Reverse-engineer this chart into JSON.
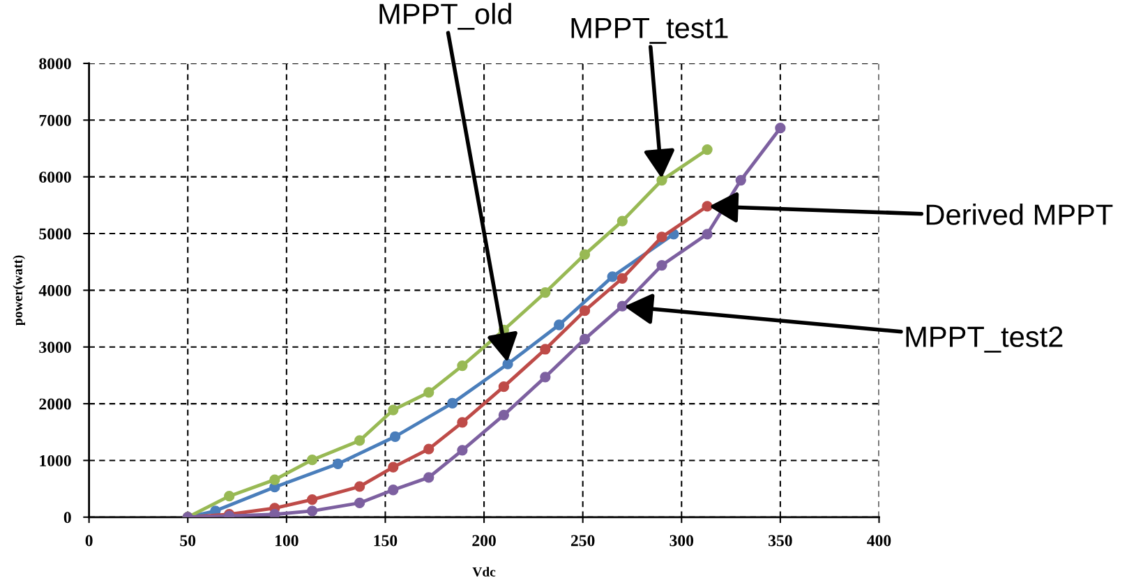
{
  "chart_data": {
    "type": "line",
    "xlabel": "Vdc",
    "ylabel": "power(watt)",
    "xlim": [
      0,
      400
    ],
    "xticks": [
      0,
      50,
      100,
      150,
      200,
      250,
      300,
      350,
      400
    ],
    "ylim": [
      0,
      8000
    ],
    "yticks": [
      0,
      1000,
      2000,
      3000,
      4000,
      5000,
      6000,
      7000,
      8000
    ],
    "grid": true,
    "marker": "circle",
    "line_style": "solid",
    "legend": false,
    "series": [
      {
        "name": "MPPT_old",
        "color": "#4a7ebb",
        "x": [
          50,
          64,
          94,
          126,
          155,
          184,
          212,
          238,
          265,
          296
        ],
        "values": [
          0,
          110,
          530,
          940,
          1420,
          2010,
          2700,
          3390,
          4240,
          4990
        ]
      },
      {
        "name": "Derived MPPT",
        "color": "#be4b48",
        "x": [
          50,
          71,
          94,
          113,
          137,
          154,
          172,
          189,
          210,
          231,
          251,
          270,
          290,
          313
        ],
        "values": [
          0,
          50,
          160,
          310,
          540,
          880,
          1200,
          1670,
          2300,
          2960,
          3640,
          4210,
          4940,
          5480
        ]
      },
      {
        "name": "MPPT_test1",
        "color": "#98b954",
        "x": [
          50,
          71,
          94,
          113,
          137,
          154,
          172,
          189,
          210,
          231,
          251,
          270,
          290,
          313
        ],
        "values": [
          0,
          370,
          660,
          1010,
          1350,
          1890,
          2200,
          2670,
          3300,
          3960,
          4630,
          5220,
          5940,
          6480
        ]
      },
      {
        "name": "MPPT_test2",
        "color": "#7d60a0",
        "x": [
          50,
          71,
          94,
          113,
          137,
          154,
          172,
          189,
          210,
          231,
          251,
          270,
          290,
          313,
          330,
          350
        ],
        "values": [
          0,
          20,
          50,
          110,
          250,
          480,
          700,
          1180,
          1800,
          2470,
          3140,
          3720,
          4440,
          4990,
          5940,
          6860
        ]
      }
    ]
  }
}
